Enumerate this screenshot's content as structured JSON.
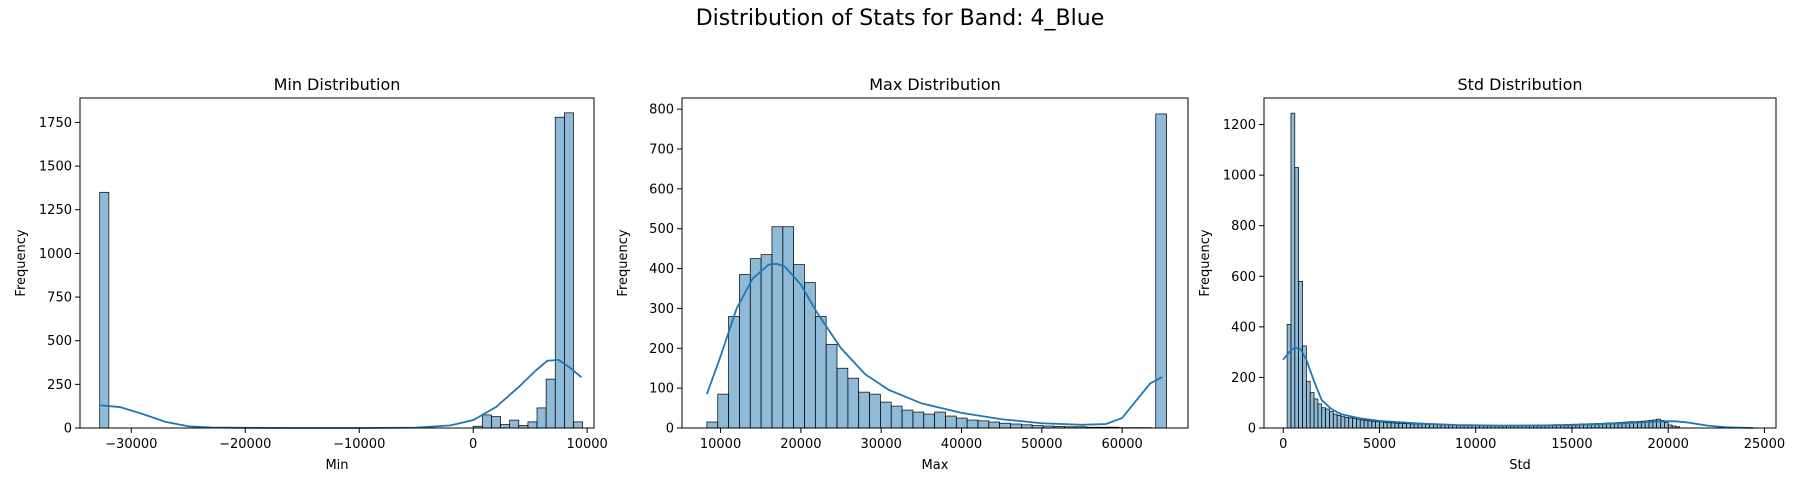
{
  "figure": {
    "title": "Distribution of Stats for Band: 4_Blue"
  },
  "colors": {
    "bar_fill": "#1f77b4",
    "bar_fill_opacity": 0.5,
    "bar_edge": "#000000",
    "kde_line": "#1f77b4",
    "axes_edge": "#000000"
  },
  "chart_data": [
    {
      "type": "bar",
      "subtype": "histogram_with_kde",
      "title": "Min Distribution",
      "xlabel": "Min",
      "ylabel": "Frequency",
      "xlim": [
        -34500,
        10600
      ],
      "ylim": [
        0,
        1890
      ],
      "xticks": [
        -30000,
        -20000,
        -10000,
        0,
        10000
      ],
      "xtick_labels": [
        "−30000",
        "−20000",
        "−10000",
        "0",
        "10000"
      ],
      "yticks": [
        0,
        250,
        500,
        750,
        1000,
        1250,
        1500,
        1750
      ],
      "bin_width": 800,
      "bins": [
        {
          "x0": -32768,
          "x1": -31968,
          "count": 1350
        },
        {
          "x0": 0,
          "x1": 800,
          "count": 10
        },
        {
          "x0": 800,
          "x1": 1600,
          "count": 75
        },
        {
          "x0": 1600,
          "x1": 2400,
          "count": 65
        },
        {
          "x0": 2400,
          "x1": 3200,
          "count": 20
        },
        {
          "x0": 3200,
          "x1": 4000,
          "count": 45
        },
        {
          "x0": 4000,
          "x1": 4800,
          "count": 15
        },
        {
          "x0": 4800,
          "x1": 5600,
          "count": 35
        },
        {
          "x0": 5600,
          "x1": 6400,
          "count": 115
        },
        {
          "x0": 6400,
          "x1": 7200,
          "count": 280
        },
        {
          "x0": 7200,
          "x1": 8000,
          "count": 1780
        },
        {
          "x0": 8000,
          "x1": 8800,
          "count": 1805
        },
        {
          "x0": 8800,
          "x1": 9600,
          "count": 35
        }
      ],
      "kde": {
        "x": [
          -32700,
          -31000,
          -29000,
          -27000,
          -25000,
          -23000,
          -20000,
          -15000,
          -10000,
          -5000,
          -2000,
          0,
          2000,
          4000,
          5500,
          6500,
          7500,
          8500,
          9500
        ],
        "y": [
          130,
          120,
          80,
          35,
          10,
          3,
          1,
          0,
          0,
          2,
          15,
          45,
          120,
          235,
          330,
          385,
          390,
          345,
          290
        ]
      }
    },
    {
      "type": "bar",
      "subtype": "histogram_with_kde",
      "title": "Max Distribution",
      "xlabel": "Max",
      "ylabel": "Frequency",
      "xlim": [
        5200,
        68200
      ],
      "ylim": [
        0,
        828
      ],
      "xticks": [
        10000,
        20000,
        30000,
        40000,
        50000,
        60000
      ],
      "xtick_labels": [
        "10000",
        "20000",
        "30000",
        "40000",
        "50000",
        "60000"
      ],
      "yticks": [
        0,
        100,
        200,
        300,
        400,
        500,
        600,
        700,
        800
      ],
      "bin_width": 1350,
      "bins": [
        {
          "x0": 8300,
          "x1": 9650,
          "count": 15
        },
        {
          "x0": 9650,
          "x1": 11000,
          "count": 85
        },
        {
          "x0": 11000,
          "x1": 12350,
          "count": 280
        },
        {
          "x0": 12350,
          "x1": 13700,
          "count": 385
        },
        {
          "x0": 13700,
          "x1": 15050,
          "count": 425
        },
        {
          "x0": 15050,
          "x1": 16400,
          "count": 435
        },
        {
          "x0": 16400,
          "x1": 17750,
          "count": 505
        },
        {
          "x0": 17750,
          "x1": 19100,
          "count": 505
        },
        {
          "x0": 19100,
          "x1": 20450,
          "count": 410
        },
        {
          "x0": 20450,
          "x1": 21800,
          "count": 365
        },
        {
          "x0": 21800,
          "x1": 23150,
          "count": 280
        },
        {
          "x0": 23150,
          "x1": 24500,
          "count": 210
        },
        {
          "x0": 24500,
          "x1": 25850,
          "count": 150
        },
        {
          "x0": 25850,
          "x1": 27200,
          "count": 125
        },
        {
          "x0": 27200,
          "x1": 28550,
          "count": 90
        },
        {
          "x0": 28550,
          "x1": 29900,
          "count": 85
        },
        {
          "x0": 29900,
          "x1": 31250,
          "count": 65
        },
        {
          "x0": 31250,
          "x1": 32600,
          "count": 55
        },
        {
          "x0": 32600,
          "x1": 33950,
          "count": 45
        },
        {
          "x0": 33950,
          "x1": 35300,
          "count": 40
        },
        {
          "x0": 35300,
          "x1": 36650,
          "count": 35
        },
        {
          "x0": 36650,
          "x1": 38000,
          "count": 40
        },
        {
          "x0": 38000,
          "x1": 39350,
          "count": 30
        },
        {
          "x0": 39350,
          "x1": 40700,
          "count": 25
        },
        {
          "x0": 40700,
          "x1": 42050,
          "count": 20
        },
        {
          "x0": 42050,
          "x1": 43400,
          "count": 18
        },
        {
          "x0": 43400,
          "x1": 44750,
          "count": 15
        },
        {
          "x0": 44750,
          "x1": 46100,
          "count": 12
        },
        {
          "x0": 46100,
          "x1": 47450,
          "count": 10
        },
        {
          "x0": 47450,
          "x1": 48800,
          "count": 8
        },
        {
          "x0": 48800,
          "x1": 50150,
          "count": 6
        },
        {
          "x0": 50150,
          "x1": 51500,
          "count": 5
        },
        {
          "x0": 51500,
          "x1": 52850,
          "count": 4
        },
        {
          "x0": 52850,
          "x1": 54200,
          "count": 3
        },
        {
          "x0": 54200,
          "x1": 55550,
          "count": 3
        },
        {
          "x0": 55550,
          "x1": 56900,
          "count": 2
        },
        {
          "x0": 56900,
          "x1": 58250,
          "count": 2
        },
        {
          "x0": 58250,
          "x1": 59600,
          "count": 2
        },
        {
          "x0": 59600,
          "x1": 60950,
          "count": 1
        },
        {
          "x0": 60950,
          "x1": 62300,
          "count": 1
        },
        {
          "x0": 62300,
          "x1": 63650,
          "count": 1
        },
        {
          "x0": 64185,
          "x1": 65535,
          "count": 788
        }
      ],
      "kde": {
        "x": [
          8300,
          10000,
          12000,
          14000,
          16000,
          17000,
          18000,
          20000,
          22000,
          25000,
          28000,
          31000,
          35000,
          40000,
          45000,
          50000,
          55000,
          58000,
          60000,
          62000,
          63500,
          65000
        ],
        "y": [
          85,
          180,
          300,
          375,
          410,
          412,
          405,
          360,
          290,
          200,
          135,
          95,
          62,
          38,
          22,
          12,
          8,
          10,
          25,
          75,
          112,
          128
        ]
      }
    },
    {
      "type": "bar",
      "subtype": "histogram_with_kde",
      "title": "Std Distribution",
      "xlabel": "Std",
      "ylabel": "Frequency",
      "xlim": [
        -1000,
        25600
      ],
      "ylim": [
        0,
        1305
      ],
      "xticks": [
        0,
        5000,
        10000,
        15000,
        20000,
        25000
      ],
      "xtick_labels": [
        "0",
        "5000",
        "10000",
        "15000",
        "20000",
        "25000"
      ],
      "yticks": [
        0,
        200,
        400,
        600,
        800,
        1000,
        1200
      ],
      "bin_start": 200,
      "bin_width": 200,
      "counts": [
        410,
        1245,
        1030,
        580,
        325,
        185,
        140,
        115,
        95,
        80,
        75,
        65,
        55,
        50,
        45,
        42,
        40,
        38,
        35,
        32,
        30,
        28,
        26,
        25,
        24,
        22,
        21,
        20,
        19,
        18,
        17,
        17,
        16,
        16,
        15,
        15,
        14,
        14,
        13,
        13,
        13,
        12,
        12,
        12,
        11,
        11,
        11,
        11,
        10,
        10,
        10,
        10,
        10,
        10,
        10,
        10,
        10,
        10,
        10,
        10,
        11,
        11,
        11,
        11,
        11,
        12,
        12,
        12,
        12,
        13,
        13,
        13,
        14,
        14,
        15,
        15,
        16,
        16,
        17,
        17,
        18,
        18,
        19,
        20,
        20,
        21,
        22,
        23,
        24,
        25,
        25,
        26,
        27,
        28,
        30,
        32,
        35,
        30,
        22,
        12,
        8,
        5
      ],
      "kde": {
        "x": [
          0,
          300,
          600,
          900,
          1200,
          1600,
          2000,
          2500,
          3000,
          4000,
          5000,
          7000,
          9000,
          11000,
          13000,
          15000,
          17000,
          18500,
          19500,
          20300,
          21000,
          22000,
          23000,
          24400
        ],
        "y": [
          270,
          300,
          318,
          312,
          270,
          185,
          110,
          75,
          55,
          38,
          28,
          18,
          12,
          10,
          10,
          12,
          17,
          22,
          26,
          27,
          22,
          10,
          3,
          0
        ]
      }
    }
  ]
}
